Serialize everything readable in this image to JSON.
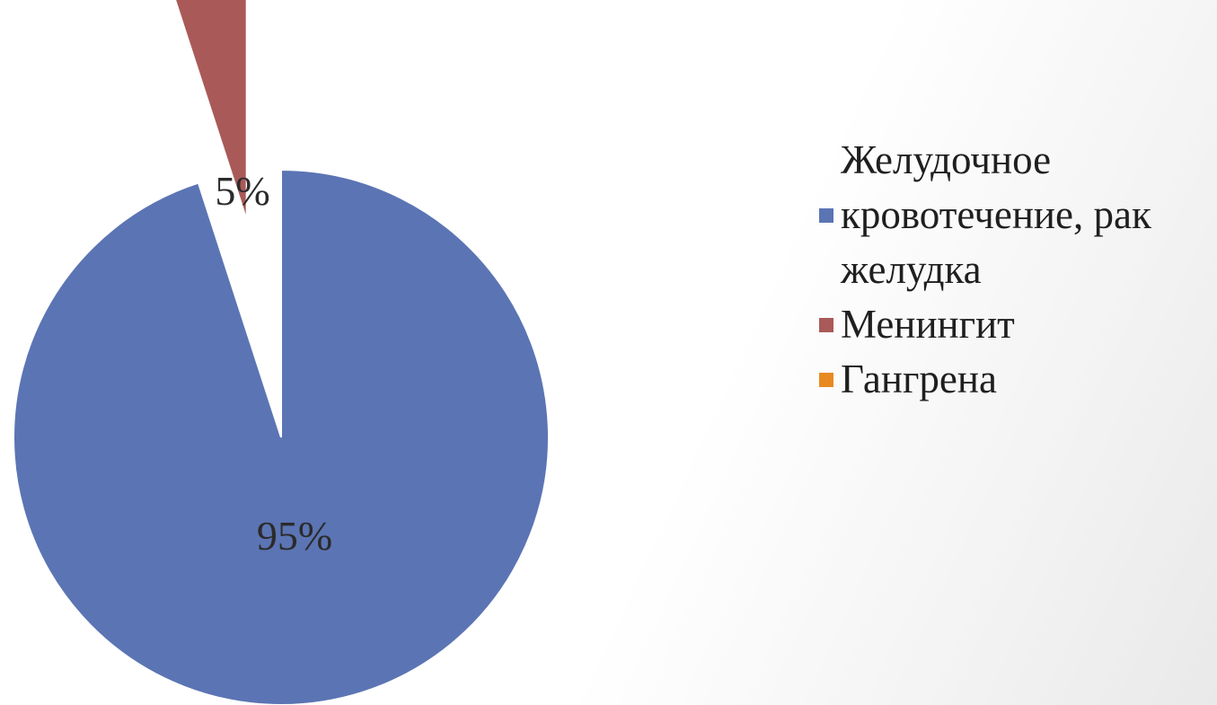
{
  "chart_data": {
    "type": "pie",
    "title": "",
    "slices": [
      {
        "name": "Желудочное кровотечение, рак желудка",
        "value": 95,
        "label": "95%",
        "color": "#5b74b4"
      },
      {
        "name": "Менингит",
        "value": 5,
        "label": "5%",
        "color": "#a95a58"
      },
      {
        "name": "Гангрена",
        "value": 0,
        "label": "",
        "color": "#e88a22"
      }
    ],
    "legend": {
      "position": "right",
      "entries": [
        "Желудочное кровотечение, рак желудка",
        "Менингит",
        "Гангрена"
      ]
    },
    "exploded_slices": [
      "Менингит"
    ]
  }
}
